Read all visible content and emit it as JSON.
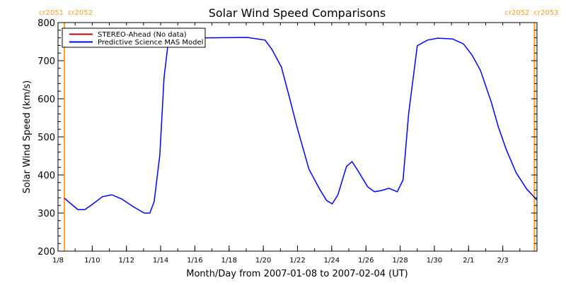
{
  "chart_data": {
    "type": "line",
    "title": "Solar Wind Speed Comparisons",
    "xlabel": "Month/Day from 2007-01-08 to 2007-02-04 (UT)",
    "ylabel": "Solar Wind Speed (km/s)",
    "x_unit": "days since 2007-01-08 00:00 UT",
    "xlim": [
      0,
      28
    ],
    "ylim": [
      200,
      800
    ],
    "x_ticks": [
      {
        "day": 0,
        "label": "1/8"
      },
      {
        "day": 2,
        "label": "1/10"
      },
      {
        "day": 4,
        "label": "1/12"
      },
      {
        "day": 6,
        "label": "1/14"
      },
      {
        "day": 8,
        "label": "1/16"
      },
      {
        "day": 10,
        "label": "1/18"
      },
      {
        "day": 12,
        "label": "1/20"
      },
      {
        "day": 14,
        "label": "1/22"
      },
      {
        "day": 16,
        "label": "1/24"
      },
      {
        "day": 18,
        "label": "1/26"
      },
      {
        "day": 20,
        "label": "1/28"
      },
      {
        "day": 22,
        "label": "1/30"
      },
      {
        "day": 24,
        "label": "2/1"
      },
      {
        "day": 26,
        "label": "2/3"
      }
    ],
    "y_ticks": [
      200,
      300,
      400,
      500,
      600,
      700,
      800
    ],
    "legend": {
      "placement": "top-left",
      "entries": [
        {
          "label": "STEREO-Ahead (No data)",
          "color": "#c00000"
        },
        {
          "label": "Predictive Science MAS Model",
          "color": "#0000ff"
        }
      ]
    },
    "carrington_markers": [
      {
        "day": 0.37,
        "labels": [
          "cr2051",
          "cr2052"
        ],
        "color": "#ff9e28"
      },
      {
        "day": 27.85,
        "labels": [
          "cr2052",
          "cr2053"
        ],
        "color": "#ff9e28"
      }
    ],
    "series": [
      {
        "name": "STEREO-Ahead (No data)",
        "color": "#c00000",
        "x": [],
        "y": []
      },
      {
        "name": "Predictive Science MAS Model",
        "color": "#0000ff",
        "x": [
          0.37,
          1.16,
          1.57,
          1.98,
          2.6,
          3.14,
          3.72,
          4.46,
          5.04,
          5.37,
          5.62,
          5.95,
          6.2,
          6.45,
          6.94,
          11.07,
          12.1,
          12.5,
          13.06,
          13.55,
          13.97,
          14.67,
          15.29,
          15.7,
          16.03,
          16.36,
          16.86,
          17.19,
          17.48,
          18.1,
          18.5,
          18.9,
          19.34,
          19.83,
          20.17,
          20.5,
          21.0,
          21.6,
          22.2,
          23.06,
          23.7,
          24.2,
          24.7,
          25.33,
          25.74,
          26.2,
          26.78,
          27.4,
          27.98
        ],
        "y": [
          339,
          309,
          309,
          322,
          343,
          348,
          337,
          315,
          300,
          300,
          330,
          452,
          656,
          752,
          759,
          761,
          754,
          730,
          683,
          600,
          526,
          415,
          363,
          333,
          324,
          348,
          422,
          435,
          415,
          369,
          356,
          359,
          365,
          356,
          387,
          563,
          739,
          754,
          759,
          757,
          744,
          715,
          674,
          591,
          526,
          467,
          406,
          363,
          335
        ]
      }
    ]
  }
}
